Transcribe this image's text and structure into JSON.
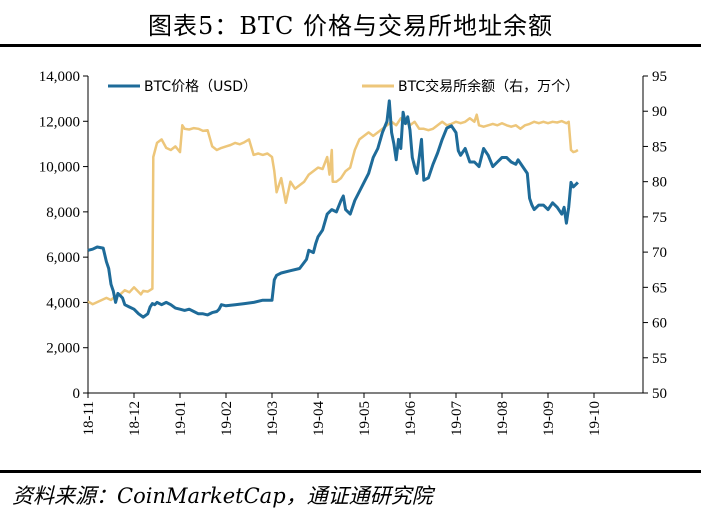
{
  "title": "图表5：BTC 价格与交易所地址余额",
  "source": "资料来源：CoinMarketCap，通证通研究院",
  "chart_data": {
    "type": "line",
    "title": "图表5：BTC 价格与交易所地址余额",
    "x_categories": [
      "18-11",
      "18-12",
      "19-01",
      "19-02",
      "19-03",
      "19-04",
      "19-05",
      "19-06",
      "19-07",
      "19-08",
      "19-09",
      "19-10"
    ],
    "y_left": {
      "label": "BTC价格（USD）",
      "ylim": [
        0,
        14000
      ],
      "ticks": [
        "0",
        "2,000",
        "4,000",
        "6,000",
        "8,000",
        "10,000",
        "12,000",
        "14,000"
      ]
    },
    "y_right": {
      "label": "BTC交易所余额（右，万个）",
      "ylim": [
        50,
        95
      ],
      "ticks": [
        "50",
        "55",
        "60",
        "65",
        "70",
        "75",
        "80",
        "85",
        "90",
        "95"
      ]
    },
    "legend": {
      "placement": "top",
      "items": [
        "BTC价格（USD）",
        "BTC交易所余额（右，万个）"
      ]
    },
    "colors": {
      "price": "#1e6b99",
      "balance": "#edc67a"
    },
    "series": [
      {
        "name": "BTC价格（USD）",
        "axis": "left",
        "points": [
          [
            0.0,
            6300
          ],
          [
            0.1,
            6350
          ],
          [
            0.2,
            6450
          ],
          [
            0.33,
            6400
          ],
          [
            0.4,
            5800
          ],
          [
            0.45,
            5500
          ],
          [
            0.5,
            4800
          ],
          [
            0.55,
            4500
          ],
          [
            0.6,
            4000
          ],
          [
            0.65,
            4400
          ],
          [
            0.7,
            4300
          ],
          [
            0.75,
            4200
          ],
          [
            0.8,
            3900
          ],
          [
            0.9,
            3800
          ],
          [
            1.0,
            3700
          ],
          [
            1.1,
            3500
          ],
          [
            1.2,
            3350
          ],
          [
            1.3,
            3500
          ],
          [
            1.35,
            3800
          ],
          [
            1.4,
            3950
          ],
          [
            1.45,
            3900
          ],
          [
            1.5,
            4000
          ],
          [
            1.6,
            3900
          ],
          [
            1.7,
            4000
          ],
          [
            1.8,
            3900
          ],
          [
            1.9,
            3750
          ],
          [
            2.0,
            3700
          ],
          [
            2.1,
            3650
          ],
          [
            2.2,
            3700
          ],
          [
            2.3,
            3600
          ],
          [
            2.4,
            3500
          ],
          [
            2.5,
            3500
          ],
          [
            2.6,
            3450
          ],
          [
            2.7,
            3550
          ],
          [
            2.8,
            3600
          ],
          [
            2.85,
            3700
          ],
          [
            2.9,
            3900
          ],
          [
            3.0,
            3850
          ],
          [
            3.2,
            3900
          ],
          [
            3.4,
            3950
          ],
          [
            3.6,
            4000
          ],
          [
            3.8,
            4100
          ],
          [
            4.0,
            4100
          ],
          [
            4.05,
            5000
          ],
          [
            4.1,
            5200
          ],
          [
            4.2,
            5300
          ],
          [
            4.4,
            5400
          ],
          [
            4.6,
            5500
          ],
          [
            4.75,
            5900
          ],
          [
            4.8,
            6300
          ],
          [
            4.9,
            6200
          ],
          [
            4.95,
            6600
          ],
          [
            5.0,
            6900
          ],
          [
            5.1,
            7200
          ],
          [
            5.2,
            7900
          ],
          [
            5.3,
            8100
          ],
          [
            5.4,
            8000
          ],
          [
            5.5,
            8500
          ],
          [
            5.55,
            8700
          ],
          [
            5.6,
            8100
          ],
          [
            5.7,
            7900
          ],
          [
            5.8,
            8500
          ],
          [
            5.9,
            8900
          ],
          [
            6.0,
            9300
          ],
          [
            6.1,
            9700
          ],
          [
            6.2,
            10400
          ],
          [
            6.3,
            10800
          ],
          [
            6.4,
            11500
          ],
          [
            6.5,
            12000
          ],
          [
            6.55,
            12900
          ],
          [
            6.6,
            11500
          ],
          [
            6.65,
            11000
          ],
          [
            6.7,
            10300
          ],
          [
            6.75,
            11200
          ],
          [
            6.8,
            10800
          ],
          [
            6.85,
            12400
          ],
          [
            6.9,
            11900
          ],
          [
            6.95,
            12200
          ],
          [
            7.0,
            11600
          ],
          [
            7.05,
            10400
          ],
          [
            7.1,
            10000
          ],
          [
            7.15,
            9700
          ],
          [
            7.2,
            10400
          ],
          [
            7.25,
            11200
          ],
          [
            7.3,
            9400
          ],
          [
            7.4,
            9500
          ],
          [
            7.5,
            10100
          ],
          [
            7.6,
            10600
          ],
          [
            7.7,
            11200
          ],
          [
            7.8,
            11700
          ],
          [
            7.9,
            11800
          ],
          [
            8.0,
            11500
          ],
          [
            8.05,
            10700
          ],
          [
            8.1,
            10500
          ],
          [
            8.2,
            10800
          ],
          [
            8.3,
            10200
          ],
          [
            8.4,
            10200
          ],
          [
            8.5,
            10000
          ],
          [
            8.6,
            10800
          ],
          [
            8.7,
            10500
          ],
          [
            8.8,
            10000
          ],
          [
            8.9,
            10200
          ],
          [
            9.0,
            10400
          ],
          [
            9.1,
            10400
          ],
          [
            9.2,
            10200
          ],
          [
            9.3,
            10100
          ],
          [
            9.35,
            10300
          ],
          [
            9.45,
            10000
          ],
          [
            9.55,
            9700
          ],
          [
            9.6,
            8600
          ],
          [
            9.65,
            8300
          ],
          [
            9.7,
            8100
          ],
          [
            9.8,
            8300
          ],
          [
            9.9,
            8300
          ],
          [
            10.0,
            8100
          ],
          [
            10.1,
            8400
          ],
          [
            10.2,
            8200
          ],
          [
            10.3,
            7900
          ],
          [
            10.35,
            8200
          ],
          [
            10.4,
            7500
          ],
          [
            10.45,
            8200
          ],
          [
            10.5,
            9300
          ],
          [
            10.55,
            9100
          ],
          [
            10.6,
            9200
          ],
          [
            10.65,
            9300
          ]
        ]
      },
      {
        "name": "BTC交易所余额（右，万个）",
        "axis": "right",
        "points": [
          [
            0.0,
            63.0
          ],
          [
            0.1,
            62.6
          ],
          [
            0.2,
            62.9
          ],
          [
            0.3,
            63.2
          ],
          [
            0.4,
            63.5
          ],
          [
            0.5,
            63.2
          ],
          [
            0.6,
            63.8
          ],
          [
            0.7,
            64.0
          ],
          [
            0.8,
            64.6
          ],
          [
            0.9,
            64.3
          ],
          [
            1.0,
            65.0
          ],
          [
            1.15,
            64.0
          ],
          [
            1.2,
            64.5
          ],
          [
            1.3,
            64.4
          ],
          [
            1.4,
            64.8
          ],
          [
            1.42,
            83.5
          ],
          [
            1.5,
            85.5
          ],
          [
            1.6,
            86.0
          ],
          [
            1.7,
            84.8
          ],
          [
            1.8,
            84.5
          ],
          [
            1.9,
            85.0
          ],
          [
            2.0,
            84.2
          ],
          [
            2.05,
            88.0
          ],
          [
            2.1,
            87.5
          ],
          [
            2.2,
            87.4
          ],
          [
            2.3,
            87.6
          ],
          [
            2.4,
            87.5
          ],
          [
            2.5,
            87.2
          ],
          [
            2.6,
            87.3
          ],
          [
            2.7,
            85.0
          ],
          [
            2.8,
            84.5
          ],
          [
            2.9,
            84.8
          ],
          [
            3.0,
            85.0
          ],
          [
            3.1,
            85.2
          ],
          [
            3.2,
            85.5
          ],
          [
            3.3,
            85.3
          ],
          [
            3.4,
            85.6
          ],
          [
            3.5,
            86.0
          ],
          [
            3.6,
            83.8
          ],
          [
            3.7,
            84.0
          ],
          [
            3.8,
            83.8
          ],
          [
            3.9,
            84.0
          ],
          [
            4.0,
            83.5
          ],
          [
            4.05,
            81.5
          ],
          [
            4.1,
            78.5
          ],
          [
            4.2,
            80.5
          ],
          [
            4.3,
            77.0
          ],
          [
            4.4,
            80.0
          ],
          [
            4.5,
            79.0
          ],
          [
            4.6,
            79.5
          ],
          [
            4.7,
            80.0
          ],
          [
            4.8,
            81.0
          ],
          [
            4.9,
            81.5
          ],
          [
            5.0,
            82.0
          ],
          [
            5.1,
            81.8
          ],
          [
            5.2,
            83.5
          ],
          [
            5.25,
            81.0
          ],
          [
            5.3,
            84.5
          ],
          [
            5.32,
            80.0
          ],
          [
            5.4,
            80.0
          ],
          [
            5.5,
            80.5
          ],
          [
            5.6,
            81.5
          ],
          [
            5.7,
            82.0
          ],
          [
            5.8,
            84.5
          ],
          [
            5.9,
            86.0
          ],
          [
            6.0,
            86.5
          ],
          [
            6.1,
            87.0
          ],
          [
            6.2,
            86.5
          ],
          [
            6.3,
            87.0
          ],
          [
            6.4,
            87.5
          ],
          [
            6.5,
            88.0
          ],
          [
            6.6,
            88.5
          ],
          [
            6.7,
            88.0
          ],
          [
            6.8,
            89.0
          ],
          [
            6.9,
            88.5
          ],
          [
            7.0,
            88.0
          ],
          [
            7.1,
            88.5
          ],
          [
            7.2,
            87.5
          ],
          [
            7.3,
            87.5
          ],
          [
            7.4,
            87.3
          ],
          [
            7.5,
            87.5
          ],
          [
            7.6,
            88.0
          ],
          [
            7.7,
            88.5
          ],
          [
            7.8,
            88.0
          ],
          [
            7.9,
            88.2
          ],
          [
            8.0,
            88.5
          ],
          [
            8.1,
            88.3
          ],
          [
            8.2,
            88.5
          ],
          [
            8.3,
            89.0
          ],
          [
            8.4,
            88.5
          ],
          [
            8.45,
            89.5
          ],
          [
            8.5,
            88.0
          ],
          [
            8.6,
            87.8
          ],
          [
            8.7,
            88.0
          ],
          [
            8.8,
            88.2
          ],
          [
            8.9,
            88.0
          ],
          [
            9.0,
            88.3
          ],
          [
            9.1,
            88.0
          ],
          [
            9.2,
            87.8
          ],
          [
            9.3,
            88.0
          ],
          [
            9.4,
            87.5
          ],
          [
            9.5,
            88.0
          ],
          [
            9.6,
            88.2
          ],
          [
            9.7,
            88.5
          ],
          [
            9.8,
            88.3
          ],
          [
            9.9,
            88.5
          ],
          [
            10.0,
            88.3
          ],
          [
            10.1,
            88.5
          ],
          [
            10.2,
            88.4
          ],
          [
            10.3,
            88.6
          ],
          [
            10.4,
            88.3
          ],
          [
            10.45,
            88.5
          ],
          [
            10.5,
            84.5
          ],
          [
            10.55,
            84.2
          ],
          [
            10.6,
            84.3
          ],
          [
            10.65,
            84.5
          ]
        ]
      }
    ]
  }
}
